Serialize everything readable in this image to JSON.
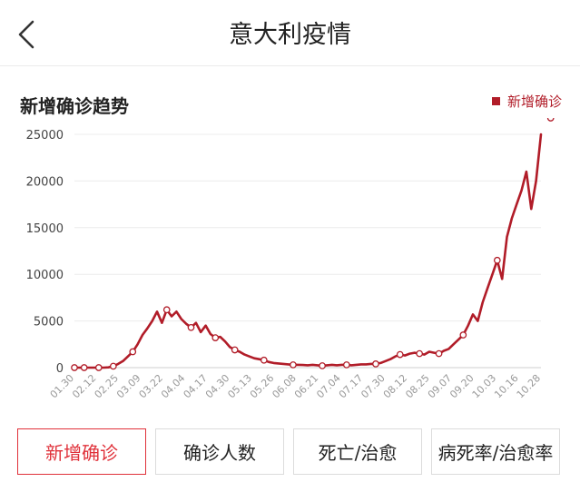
{
  "header": {
    "title": "意大利疫情",
    "back_icon": "chevron-left-icon"
  },
  "chart_section": {
    "title": "新增确诊趋势",
    "legend_label": "新增确诊"
  },
  "colors": {
    "accent": "#b11c28",
    "active_tab": "#e0313a"
  },
  "tabs": [
    {
      "label": "新增确诊",
      "active": true
    },
    {
      "label": "确诊人数",
      "active": false
    },
    {
      "label": "死亡/治愈",
      "active": false
    },
    {
      "label": "病死率/治愈率",
      "active": false
    }
  ],
  "chart_data": {
    "type": "line",
    "title": "新增确诊趋势",
    "series": [
      {
        "name": "新增确诊",
        "values": [
          0,
          0,
          0,
          0,
          0,
          0,
          0,
          30,
          150,
          400,
          700,
          1200,
          1700,
          2500,
          3500,
          4200,
          5000,
          6000,
          4800,
          6200,
          5500,
          6000,
          5200,
          4700,
          4300,
          4800,
          3800,
          4500,
          3600,
          3200,
          3300,
          2800,
          2200,
          1900,
          1700,
          1400,
          1200,
          1000,
          900,
          800,
          600,
          500,
          450,
          400,
          350,
          300,
          300,
          280,
          250,
          300,
          250,
          200,
          250,
          300,
          250,
          300,
          300,
          250,
          300,
          350,
          350,
          400,
          400,
          500,
          700,
          900,
          1200,
          1400,
          1300,
          1500,
          1600,
          1500,
          1400,
          1700,
          1600,
          1500,
          1800,
          2000,
          2500,
          3000,
          3500,
          4500,
          5700,
          5000,
          7000,
          8500,
          10000,
          11500,
          9500,
          14000,
          16000,
          17500,
          19000,
          21000,
          17000,
          20000,
          25000
        ]
      }
    ],
    "x_tick_labels": [
      "01.30",
      "02.12",
      "02.25",
      "03.09",
      "03.22",
      "04.04",
      "04.17",
      "04.30",
      "05.13",
      "05.26",
      "06.08",
      "06.21",
      "07.04",
      "07.17",
      "07.30",
      "08.12",
      "08.25",
      "09.07",
      "09.20",
      "10.03",
      "10.16",
      "10.28"
    ],
    "y_ticks": [
      0,
      5000,
      10000,
      15000,
      20000,
      25000
    ],
    "ylim": [
      0,
      25000
    ],
    "markers": [
      0,
      2,
      5,
      8,
      12,
      19,
      24,
      29,
      33,
      39,
      45,
      51,
      56,
      62,
      67,
      71,
      75,
      80,
      87,
      98
    ],
    "grid": true,
    "legend_position": "top-right"
  }
}
